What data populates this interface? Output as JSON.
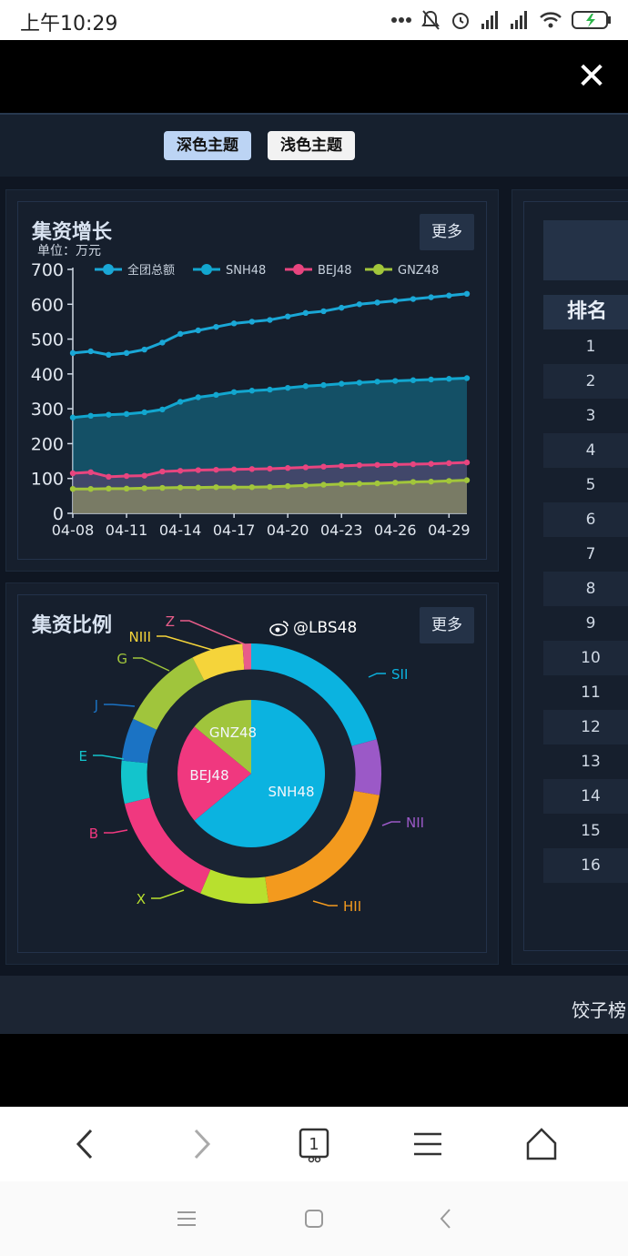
{
  "status_bar": {
    "time": "上午10:29"
  },
  "theme_buttons": {
    "dark": "深色主题",
    "light": "浅色主题"
  },
  "growth_panel": {
    "title": "集资增长",
    "unit": "单位：万元",
    "more_label": "更多"
  },
  "ratio_panel": {
    "title": "集资比例",
    "more_label": "更多"
  },
  "watermark": "@LBS48",
  "ranking": {
    "header": "排名",
    "rows": [
      "1",
      "2",
      "3",
      "4",
      "5",
      "6",
      "7",
      "8",
      "9",
      "10",
      "11",
      "12",
      "13",
      "14",
      "15",
      "16"
    ]
  },
  "bottom_strip_text": "饺子榜",
  "chart_data": [
    {
      "type": "area",
      "title": "集资增长",
      "ylabel": "单位：万元",
      "ylim": [
        0,
        700
      ],
      "yticks": [
        "0",
        "100",
        "200",
        "300",
        "400",
        "500",
        "600",
        "700"
      ],
      "xtick_labels": [
        "04-08",
        "04-11",
        "04-14",
        "04-17",
        "04-20",
        "04-23",
        "04-26",
        "04-29"
      ],
      "x": [
        "04-08",
        "04-09",
        "04-10",
        "04-11",
        "04-12",
        "04-13",
        "04-14",
        "04-15",
        "04-16",
        "04-17",
        "04-18",
        "04-19",
        "04-20",
        "04-21",
        "04-22",
        "04-23",
        "04-24",
        "04-25",
        "04-26",
        "04-27",
        "04-28",
        "04-29",
        "04-30"
      ],
      "legend_position": "top",
      "series": [
        {
          "name": "全团总额",
          "color": "#1aa7d6",
          "values": [
            460,
            465,
            455,
            460,
            470,
            490,
            515,
            525,
            535,
            545,
            550,
            555,
            565,
            575,
            580,
            590,
            600,
            605,
            610,
            615,
            620,
            625,
            630
          ]
        },
        {
          "name": "SNH48",
          "color": "#12a6cf",
          "values": [
            275,
            280,
            283,
            285,
            290,
            298,
            320,
            333,
            340,
            348,
            352,
            355,
            360,
            365,
            368,
            372,
            375,
            378,
            380,
            382,
            384,
            386,
            388
          ]
        },
        {
          "name": "BEJ48",
          "color": "#e8457f",
          "values": [
            115,
            118,
            105,
            107,
            108,
            120,
            122,
            124,
            125,
            126,
            127,
            128,
            130,
            132,
            134,
            136,
            138,
            139,
            140,
            141,
            142,
            144,
            146
          ]
        },
        {
          "name": "GNZ48",
          "color": "#a2c63b",
          "values": [
            70,
            70,
            71,
            71,
            72,
            73,
            74,
            74,
            75,
            75,
            75,
            76,
            78,
            80,
            82,
            84,
            85,
            86,
            88,
            90,
            91,
            93,
            95
          ]
        }
      ]
    },
    {
      "type": "pie",
      "title": "集资比例",
      "inner": [
        {
          "name": "SNH48",
          "value": 64,
          "color": "#0bb3e0"
        },
        {
          "name": "BEJ48",
          "value": 22,
          "color": "#f0387f"
        },
        {
          "name": "GNZ48",
          "value": 14,
          "color": "#a0c53c"
        }
      ],
      "outer": [
        {
          "name": "SII",
          "value": 19.5,
          "color": "#0bb3e0"
        },
        {
          "name": "NII",
          "value": 6.5,
          "color": "#9b59c7"
        },
        {
          "name": "HII",
          "value": 19,
          "color": "#f39a1e"
        },
        {
          "name": "X",
          "value": 8,
          "color": "#b8e02e"
        },
        {
          "name": "B",
          "value": 14,
          "color": "#f0387f"
        },
        {
          "name": "E",
          "value": 5,
          "color": "#13c4cc"
        },
        {
          "name": "J",
          "value": 5,
          "color": "#1b73c4"
        },
        {
          "name": "G",
          "value": 10,
          "color": "#a0c53c"
        },
        {
          "name": "NIII",
          "value": 6,
          "color": "#f5d43a"
        },
        {
          "name": "Z",
          "value": 1,
          "color": "#e85d8a"
        }
      ]
    }
  ]
}
